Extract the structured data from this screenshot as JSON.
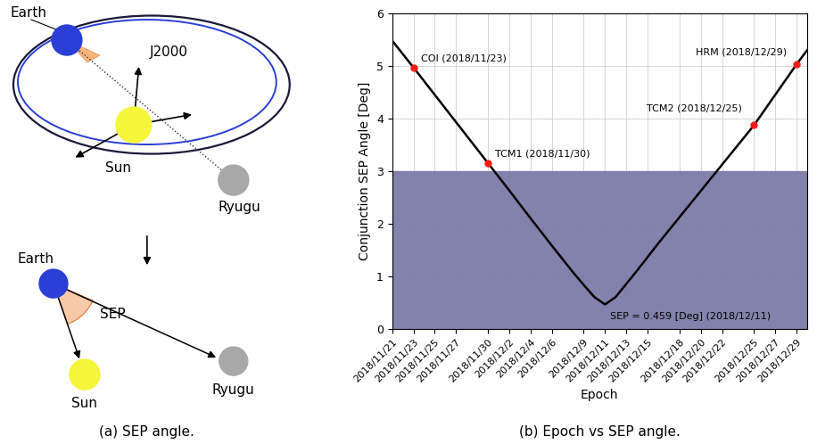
{
  "diagram": {
    "caption": "(a) SEP angle.",
    "top": {
      "earth": "Earth",
      "frame": "J2000",
      "sun": "Sun",
      "asteroid": "Ryugu"
    },
    "bottom": {
      "earth": "Earth",
      "angle": "SEP",
      "sun": "Sun",
      "asteroid": "Ryugu"
    }
  },
  "chart_data": {
    "type": "line",
    "caption": "(b) Epoch vs SEP angle.",
    "x_label": "Epoch",
    "y_label": "Conjunction SEP Angle [Deg]",
    "x": [
      "2018/11/21",
      "2018/11/23",
      "2018/11/25",
      "2018/11/27",
      "2018/11/30",
      "2018/12/02",
      "2018/12/04",
      "2018/12/06",
      "2018/12/08",
      "2018/12/09",
      "2018/12/10",
      "2018/12/11",
      "2018/12/12",
      "2018/12/13",
      "2018/12/14",
      "2018/12/16",
      "2018/12/18",
      "2018/12/20",
      "2018/12/22",
      "2018/12/25",
      "2018/12/27",
      "2018/12/29",
      "2018/12/30"
    ],
    "values": [
      5.48,
      4.97,
      4.45,
      3.93,
      3.15,
      2.63,
      2.1,
      1.58,
      1.07,
      0.83,
      0.6,
      0.459,
      0.6,
      0.85,
      1.1,
      1.62,
      2.12,
      2.62,
      3.12,
      3.87,
      4.45,
      5.03,
      5.3
    ],
    "color": "#000000",
    "band": [
      0,
      3
    ],
    "events": [
      {
        "x": "2018/11/23",
        "y": 4.97,
        "label": "COI (2018/11/23)"
      },
      {
        "x": "2018/11/30",
        "y": 3.15,
        "label": "TCM1 (2018/11/30)"
      },
      {
        "x": "2018/12/25",
        "y": 3.87,
        "label": "TCM2 (2018/12/25)"
      },
      {
        "x": "2018/12/29",
        "y": 5.03,
        "label": "HRM (2018/12/29)"
      }
    ],
    "annotations": [
      {
        "x": "2018/12/11",
        "y": 0.459,
        "text": "SEP = 0.459 [Deg] (2018/12/11)"
      }
    ],
    "xlim": [
      "2018/11/21",
      "2018/12/30"
    ],
    "xticks": [
      "2018/11/21",
      "2018/11/23",
      "2018/11/25",
      "2018/11/27",
      "2018/11/30",
      "2018/12/2",
      "2018/12/4",
      "2018/12/6",
      "2018/12/9",
      "2018/12/11",
      "2018/12/13",
      "2018/12/15",
      "2018/12/18",
      "2018/12/20",
      "2018/12/22",
      "2018/12/25",
      "2018/12/27",
      "2018/12/29"
    ],
    "ylim": [
      0,
      6
    ],
    "yticks": [
      0,
      1,
      2,
      3,
      4,
      5,
      6
    ],
    "grid": true
  }
}
